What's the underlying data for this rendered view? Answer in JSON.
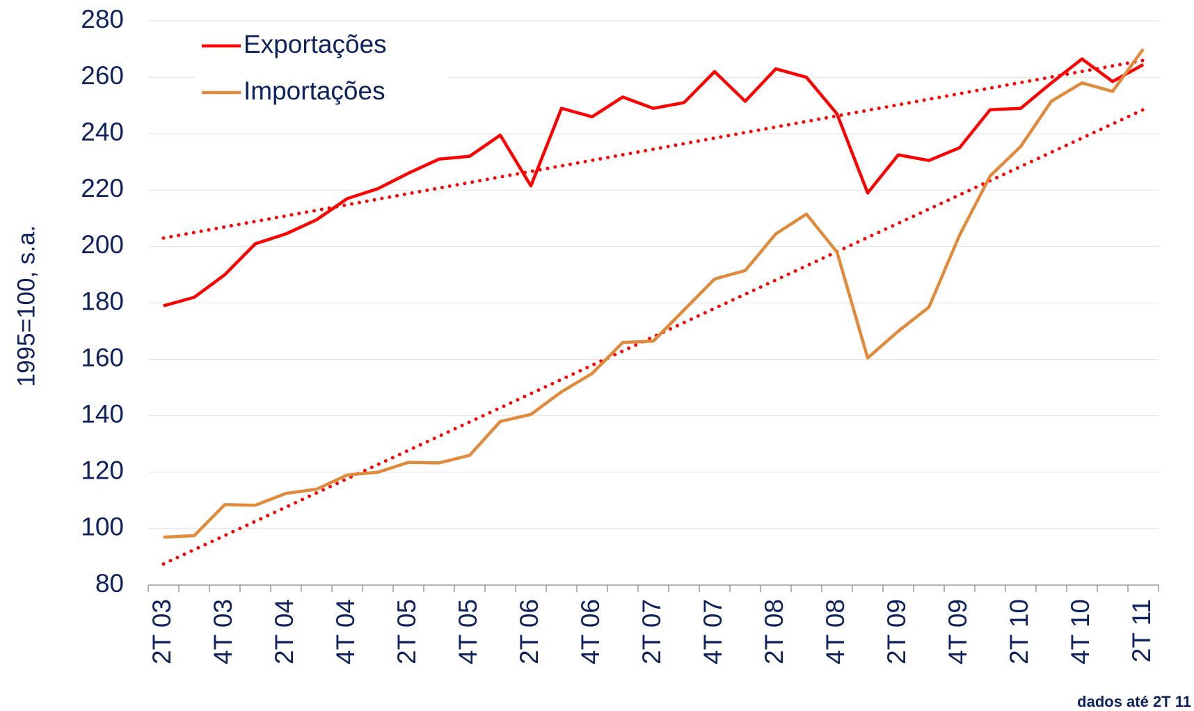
{
  "chart_data": {
    "type": "line",
    "ylabel": "1995=100, s.a.",
    "note": "dados até 2T 11",
    "categories": [
      "2T 03",
      null,
      "4T 03",
      null,
      "2T 04",
      null,
      "4T 04",
      null,
      "2T 05",
      null,
      "4T 05",
      null,
      "2T 06",
      null,
      "4T 06",
      null,
      "2T 07",
      null,
      "4T 07",
      null,
      "2T 08",
      null,
      "4T 08",
      null,
      "2T 09",
      null,
      "4T 09",
      null,
      "2T 10",
      null,
      "4T 10",
      null,
      "2T 11"
    ],
    "series": [
      {
        "name": "Exportações",
        "color": "#ff0000",
        "values": [
          179,
          182,
          190,
          201,
          204.5,
          209.5,
          217,
          220.5,
          226,
          231,
          232,
          239.5,
          221.5,
          249,
          246,
          253,
          249,
          251,
          262,
          251.5,
          263,
          260,
          247,
          219,
          232.5,
          230.5,
          235,
          248.5,
          249,
          258,
          266.5,
          258.5,
          264.5
        ]
      },
      {
        "name": "Importações",
        "color": "#e08b3c",
        "values": [
          97,
          97.5,
          108.5,
          108.3,
          112.5,
          114,
          119,
          120,
          123.5,
          123.3,
          126,
          138,
          140.5,
          148.5,
          155,
          166,
          166.5,
          177.5,
          188.5,
          191.5,
          204.5,
          211.5,
          198,
          160.5,
          170,
          178.5,
          204,
          225,
          235.5,
          251.5,
          258,
          255,
          270
        ]
      }
    ],
    "trendlines": [
      {
        "color": "#ff0000",
        "start": 203,
        "end": 266
      },
      {
        "color": "#ff0000",
        "start": 87.5,
        "end": 248.5
      }
    ],
    "ylim": [
      80,
      280
    ],
    "yticks": [
      80,
      100,
      120,
      140,
      160,
      180,
      200,
      220,
      240,
      260,
      280
    ],
    "grid": true,
    "legend": "top-left"
  }
}
